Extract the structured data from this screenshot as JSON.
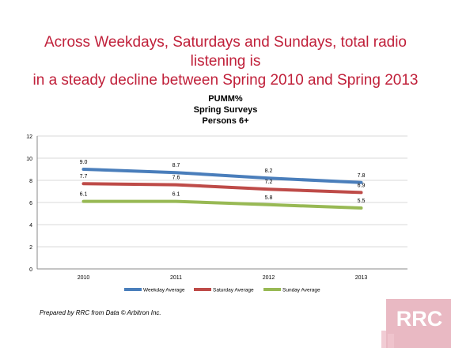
{
  "headline": {
    "line1": "Across Weekdays, Saturdays and Sundays, total radio listening is",
    "line2": "in a steady decline between Spring 2010 and Spring 2013"
  },
  "chart_data": {
    "type": "line",
    "title": [
      "PUMM%",
      "Spring Surveys",
      "Persons 6+"
    ],
    "xlabel": "",
    "ylabel": "",
    "categories": [
      "2010",
      "2011",
      "2012",
      "2013"
    ],
    "ylim": [
      0,
      12
    ],
    "yticks": [
      0,
      2,
      4,
      6,
      8,
      10,
      12
    ],
    "grid": true,
    "legend_position": "bottom",
    "series": [
      {
        "name": "Weekday Average",
        "color": "#4a7ebb",
        "values": [
          9.0,
          8.7,
          8.2,
          7.8
        ],
        "labels": [
          "9.0",
          "8.7",
          "8.2",
          "7.8"
        ]
      },
      {
        "name": "Saturday Average",
        "color": "#be4b48",
        "values": [
          7.7,
          7.6,
          7.2,
          6.9
        ],
        "labels": [
          "7.7",
          "7.6",
          "7.2",
          "6.9"
        ]
      },
      {
        "name": "Sunday Average",
        "color": "#98b954",
        "values": [
          6.1,
          6.1,
          5.8,
          5.5
        ],
        "labels": [
          "6.1",
          "6.1",
          "5.8",
          "5.5"
        ]
      }
    ]
  },
  "footnote": "Prepared by RRC from Data © Arbitron Inc.",
  "logo": {
    "text": "RRC",
    "color": "#e8b4bf"
  }
}
